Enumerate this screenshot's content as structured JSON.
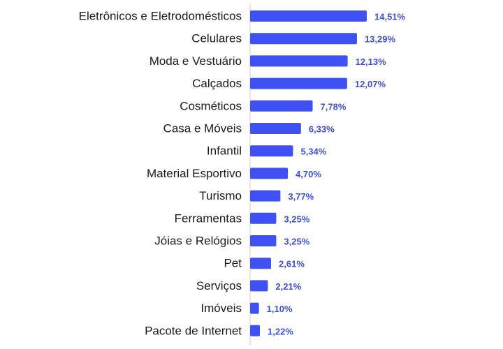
{
  "chart_data": {
    "type": "bar",
    "orientation": "horizontal",
    "categories": [
      "Eletrônicos e Eletrodomésticos",
      "Celulares",
      "Moda e Vestuário",
      "Calçados",
      "Cosméticos",
      "Casa e Móveis",
      "Infantil",
      "Material Esportivo",
      "Turismo",
      "Ferramentas",
      "Jóias e Relógios",
      "Pet",
      "Serviços",
      "Imóveis",
      "Pacote de Internet"
    ],
    "values": [
      14.51,
      13.29,
      12.13,
      12.07,
      7.78,
      6.33,
      5.34,
      4.7,
      3.77,
      3.25,
      3.25,
      2.61,
      2.21,
      1.1,
      1.22
    ],
    "value_labels": [
      "14,51%",
      "13,29%",
      "12,13%",
      "12,07%",
      "7,78%",
      "6,33%",
      "5,34%",
      "4,70%",
      "3,77%",
      "3,25%",
      "3,25%",
      "2,61%",
      "2,21%",
      "1,10%",
      "1,22%"
    ],
    "title": "",
    "xlabel": "",
    "ylabel": "",
    "xlim": [
      0,
      14.51
    ],
    "grid": false,
    "legend": "none",
    "colors": {
      "bar": "#3f51f2",
      "value_label": "#3d4fd6",
      "axis": "#cfcfcf",
      "category_label": "#1a1a1a"
    }
  }
}
